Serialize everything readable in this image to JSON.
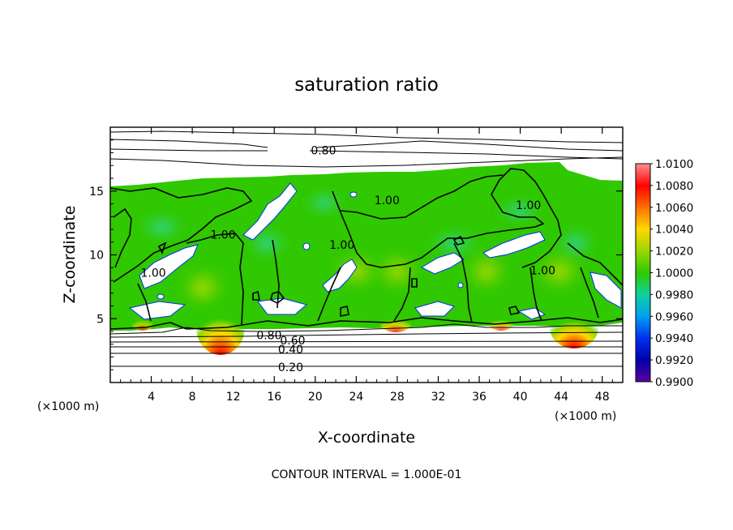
{
  "chart_data": {
    "type": "heatmap",
    "title": "saturation ratio",
    "xlabel": "X-coordinate",
    "ylabel": "Z-coordinate",
    "x_unit": "(×1000 m)",
    "y_unit": "(×1000 m)",
    "xlim": [
      0,
      50
    ],
    "ylim": [
      0,
      20
    ],
    "x_ticks": [
      4,
      8,
      12,
      16,
      20,
      24,
      28,
      32,
      36,
      40,
      44,
      48
    ],
    "y_ticks": [
      5,
      10,
      15
    ],
    "colorbar": {
      "levels": [
        "1.0100",
        "1.0080",
        "1.0060",
        "1.0040",
        "1.0020",
        "1.0000",
        "0.9980",
        "0.9960",
        "0.9940",
        "0.9920",
        "0.9900"
      ],
      "colors": [
        "#ff9090",
        "#ff0000",
        "#ff7000",
        "#ffd800",
        "#98d800",
        "#30c800",
        "#10d0a0",
        "#00a0f0",
        "#0030f0",
        "#0000a8",
        "#6000a0"
      ]
    },
    "contour_labels": [
      {
        "text": "0.80",
        "x": 20.8,
        "z": 18.2
      },
      {
        "text": "1.00",
        "x": 27.0,
        "z": 14.3
      },
      {
        "text": "1.00",
        "x": 40.8,
        "z": 13.9
      },
      {
        "text": "1.00",
        "x": 11.0,
        "z": 11.6
      },
      {
        "text": "1.00",
        "x": 22.6,
        "z": 10.8
      },
      {
        "text": "1.00",
        "x": 4.2,
        "z": 8.6
      },
      {
        "text": "1.00",
        "x": 42.2,
        "z": 8.8
      },
      {
        "text": "0.80",
        "x": 15.5,
        "z": 3.7
      },
      {
        "text": "0.60",
        "x": 17.8,
        "z": 3.3
      },
      {
        "text": "0.40",
        "x": 17.6,
        "z": 2.6
      },
      {
        "text": "0.20",
        "x": 17.6,
        "z": 1.2
      }
    ],
    "footer": "CONTOUR INTERVAL = 1.000E-01"
  }
}
